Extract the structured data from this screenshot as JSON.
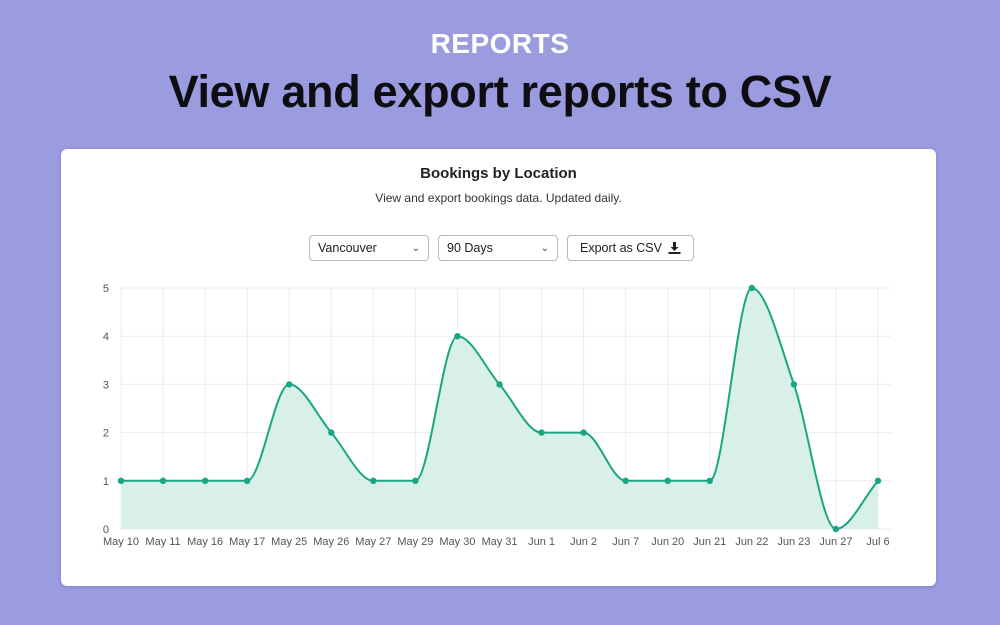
{
  "header": {
    "eyebrow": "REPORTS",
    "headline": "View and export reports to CSV"
  },
  "card": {
    "title": "Bookings by Location",
    "subtitle": "View and export bookings data. Updated daily.",
    "location_select": {
      "value": "Vancouver"
    },
    "range_select": {
      "value": "90 Days"
    },
    "export_label": "Export as CSV",
    "export_icon": "download-icon"
  },
  "colors": {
    "background": "#9b9be0",
    "line": "#1aa585",
    "fill": "#d8f0e8"
  },
  "chart_data": {
    "type": "area",
    "title": "",
    "xlabel": "",
    "ylabel": "",
    "ylim": [
      0,
      5
    ],
    "yticks": [
      0,
      1,
      2,
      3,
      4,
      5
    ],
    "grid": true,
    "categories": [
      "May 10",
      "May 11",
      "May 16",
      "May 17",
      "May 25",
      "May 26",
      "May 27",
      "May 29",
      "May 30",
      "May 31",
      "Jun 1",
      "Jun 2",
      "Jun 7",
      "Jun 20",
      "Jun 21",
      "Jun 22",
      "Jun 23",
      "Jun 27",
      "Jul 6"
    ],
    "series": [
      {
        "values": [
          1,
          1,
          1,
          1,
          3,
          2,
          1,
          1,
          4,
          3,
          2,
          2,
          1,
          1,
          1,
          5,
          3,
          0,
          1
        ]
      }
    ]
  }
}
